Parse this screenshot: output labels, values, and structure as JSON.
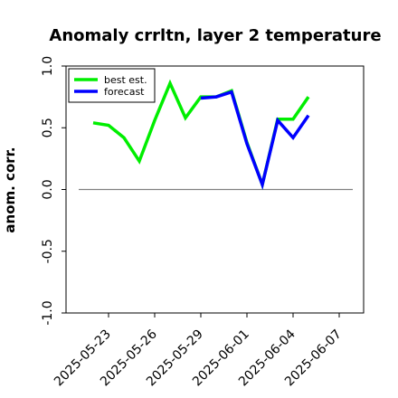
{
  "chart_data": {
    "type": "line",
    "title": "Anomaly crrltn, layer 2 temperature",
    "xlabel": "",
    "ylabel": "anom. corr.",
    "ylim": [
      -1.0,
      1.0
    ],
    "yticks": [
      "1.0",
      "0.5",
      "0.0",
      "-0.5",
      "-1.0"
    ],
    "xticks": [
      "2025-05-23",
      "2025-05-26",
      "2025-05-29",
      "2025-06-01",
      "2025-06-04",
      "2025-06-07"
    ],
    "highlight_tick": "2025-05-29",
    "reference_line": 0.0,
    "grid": false,
    "legend_position": "top-left",
    "series": [
      {
        "name": "best est.",
        "color": "#00ee00",
        "x": [
          "2025-05-22",
          "2025-05-23",
          "2025-05-24",
          "2025-05-25",
          "2025-05-26",
          "2025-05-27",
          "2025-05-28",
          "2025-05-29",
          "2025-05-30",
          "2025-05-31",
          "2025-06-01",
          "2025-06-02",
          "2025-06-03",
          "2025-06-04",
          "2025-06-05"
        ],
        "y": [
          0.54,
          0.52,
          0.42,
          0.23,
          0.56,
          0.86,
          0.58,
          0.75,
          0.75,
          0.8,
          0.38,
          0.04,
          0.57,
          0.57,
          0.75
        ]
      },
      {
        "name": "forecast",
        "color": "#0000ff",
        "x": [
          "2025-05-29",
          "2025-05-30",
          "2025-05-31",
          "2025-06-01",
          "2025-06-02",
          "2025-06-03",
          "2025-06-04",
          "2025-06-05"
        ],
        "y": [
          0.74,
          0.75,
          0.79,
          0.37,
          0.04,
          0.56,
          0.42,
          0.6
        ]
      }
    ]
  },
  "colors": {
    "highlight_tick": "#228822",
    "reference_line": "#808080"
  }
}
